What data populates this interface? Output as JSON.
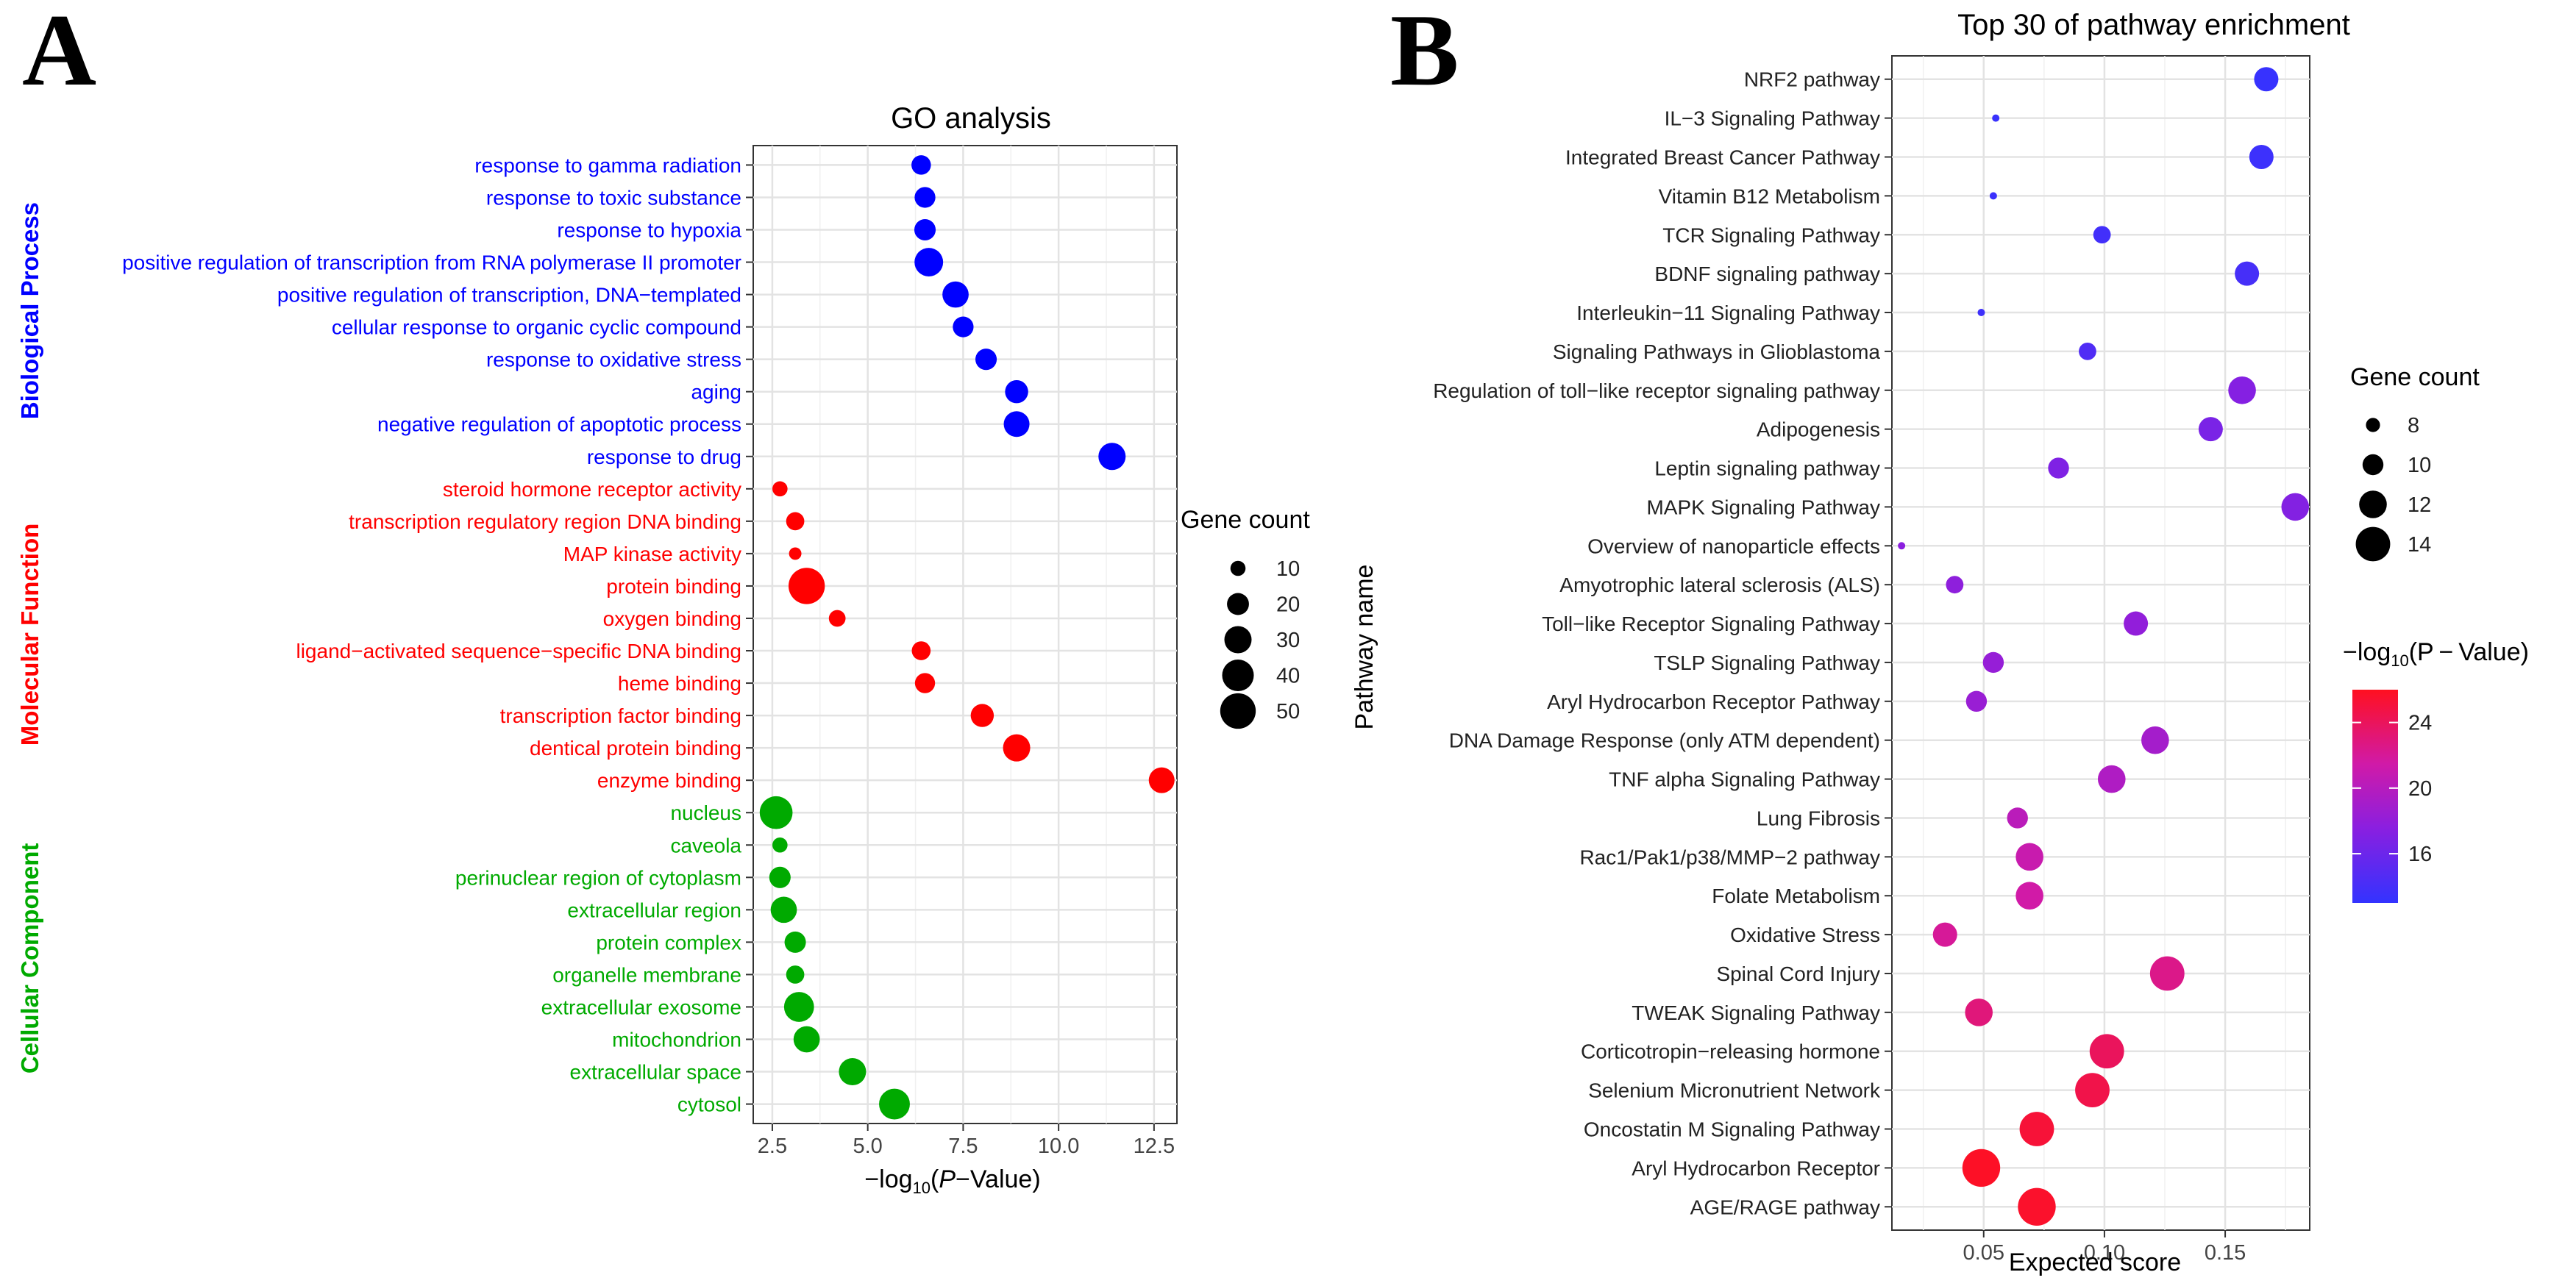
{
  "chart_data": [
    {
      "type": "scatter",
      "panel_label": "A",
      "title": "GO analysis",
      "xlabel_prefix": "−log",
      "xlabel_sub": "10",
      "xlabel_paren_open": "(",
      "xlabel_italic": "P",
      "xlabel_suffix": "−Value)",
      "xlim": [
        2.0,
        13.1
      ],
      "xticks": [
        2.5,
        5.0,
        7.5,
        10.0,
        12.5
      ],
      "xtick_labels": [
        "2.5",
        "5.0",
        "7.5",
        "10.0",
        "12.5"
      ],
      "grid": true,
      "groups": [
        {
          "name": "Biological Process",
          "color": "#0000FF"
        },
        {
          "name": "Molecular Function",
          "color": "#FF0000"
        },
        {
          "name": "Cellular Component",
          "color": "#00AA00"
        }
      ],
      "size_legend": {
        "title": "Gene count",
        "values": [
          10,
          20,
          30,
          40,
          50
        ],
        "labels": [
          "10",
          "20",
          "30",
          "40",
          "50"
        ]
      },
      "points": [
        {
          "term": "response to gamma radiation",
          "x": 6.4,
          "count": 16,
          "group": 0
        },
        {
          "term": "response to toxic substance",
          "x": 6.5,
          "count": 18,
          "group": 0
        },
        {
          "term": "response to hypoxia",
          "x": 6.5,
          "count": 19,
          "group": 0
        },
        {
          "term": "positive regulation of transcription from RNA polymerase II promoter",
          "x": 6.6,
          "count": 33,
          "group": 0
        },
        {
          "term": "positive regulation of transcription, DNA−templated",
          "x": 7.3,
          "count": 28,
          "group": 0
        },
        {
          "term": "cellular response to organic cyclic compound",
          "x": 7.5,
          "count": 18,
          "group": 0
        },
        {
          "term": "response to oxidative stress",
          "x": 8.1,
          "count": 19,
          "group": 0
        },
        {
          "term": "aging",
          "x": 8.9,
          "count": 22,
          "group": 0
        },
        {
          "term": "negative regulation of apoptotic process",
          "x": 8.9,
          "count": 27,
          "group": 0
        },
        {
          "term": "response to drug",
          "x": 11.4,
          "count": 30,
          "group": 0
        },
        {
          "term": "steroid hormone receptor activity",
          "x": 2.7,
          "count": 10,
          "group": 1
        },
        {
          "term": "transcription regulatory region DNA binding",
          "x": 3.1,
          "count": 14,
          "group": 1
        },
        {
          "term": "MAP kinase activity",
          "x": 3.1,
          "count": 7,
          "group": 1
        },
        {
          "term": "protein binding",
          "x": 3.4,
          "count": 52,
          "group": 1
        },
        {
          "term": "oxygen binding",
          "x": 4.2,
          "count": 12,
          "group": 1
        },
        {
          "term": "ligand−activated sequence−specific DNA binding",
          "x": 6.4,
          "count": 15,
          "group": 1
        },
        {
          "term": "heme binding",
          "x": 6.5,
          "count": 17,
          "group": 1
        },
        {
          "term": "transcription factor binding",
          "x": 8.0,
          "count": 22,
          "group": 1
        },
        {
          "term": "dentical protein binding",
          "x": 8.9,
          "count": 30,
          "group": 1
        },
        {
          "term": "enzyme binding",
          "x": 12.7,
          "count": 27,
          "group": 1
        },
        {
          "term": "nucleus",
          "x": 2.6,
          "count": 43,
          "group": 2
        },
        {
          "term": "caveola",
          "x": 2.7,
          "count": 10,
          "group": 2
        },
        {
          "term": "perinuclear region of cytoplasm",
          "x": 2.7,
          "count": 19,
          "group": 2
        },
        {
          "term": "extracellular region",
          "x": 2.8,
          "count": 28,
          "group": 2
        },
        {
          "term": "protein complex",
          "x": 3.1,
          "count": 19,
          "group": 2
        },
        {
          "term": "organelle membrane",
          "x": 3.1,
          "count": 14,
          "group": 2
        },
        {
          "term": "extracellular exosome",
          "x": 3.2,
          "count": 36,
          "group": 2
        },
        {
          "term": "mitochondrion",
          "x": 3.4,
          "count": 28,
          "group": 2
        },
        {
          "term": "extracellular space",
          "x": 4.6,
          "count": 30,
          "group": 2
        },
        {
          "term": "cytosol",
          "x": 5.7,
          "count": 38,
          "group": 2
        }
      ]
    },
    {
      "type": "scatter",
      "panel_label": "B",
      "title": "Top 30 of pathway enrichment",
      "xlabel": "Expected score",
      "ylabel": "Pathway name",
      "xlim": [
        0.012,
        0.185
      ],
      "xticks": [
        0.05,
        0.1,
        0.15
      ],
      "xtick_labels": [
        "0.05",
        "0.10",
        "0.15"
      ],
      "grid": true,
      "size_legend": {
        "title": "Gene count",
        "values": [
          8,
          10,
          12,
          14
        ],
        "labels": [
          "8",
          "10",
          "12",
          "14"
        ]
      },
      "color_legend": {
        "title_prefix": "−log",
        "title_sub": "10",
        "title_suffix": "(P − Value)",
        "min": 13,
        "max": 26,
        "ticks": [
          16,
          20,
          24
        ],
        "tick_labels": [
          "16",
          "20",
          "24"
        ],
        "low_color": "#3333FF",
        "high_color": "#FF1020"
      },
      "points": [
        {
          "pathway": "NRF2 pathway",
          "x": 0.167,
          "count": 11,
          "logp": 13.2
        },
        {
          "pathway": "IL−3 Signaling Pathway",
          "x": 0.055,
          "count": 6,
          "logp": 13.3
        },
        {
          "pathway": "Integrated Breast Cancer Pathway",
          "x": 0.165,
          "count": 11,
          "logp": 13.5
        },
        {
          "pathway": "Vitamin B12 Metabolism",
          "x": 0.054,
          "count": 6,
          "logp": 13.4
        },
        {
          "pathway": "TCR Signaling Pathway",
          "x": 0.099,
          "count": 9,
          "logp": 13.8
        },
        {
          "pathway": "BDNF signaling pathway",
          "x": 0.159,
          "count": 11,
          "logp": 14.0
        },
        {
          "pathway": "Interleukin−11 Signaling Pathway",
          "x": 0.049,
          "count": 6,
          "logp": 13.6
        },
        {
          "pathway": "Signaling Pathways in Glioblastoma",
          "x": 0.093,
          "count": 9,
          "logp": 14.5
        },
        {
          "pathway": "Regulation of toll−like receptor signaling pathway",
          "x": 0.157,
          "count": 12,
          "logp": 17.3
        },
        {
          "pathway": "Adipogenesis",
          "x": 0.144,
          "count": 11,
          "logp": 16.7
        },
        {
          "pathway": "Leptin signaling pathway",
          "x": 0.081,
          "count": 10,
          "logp": 17.0
        },
        {
          "pathway": "MAPK Signaling Pathway",
          "x": 0.179,
          "count": 12,
          "logp": 17.2
        },
        {
          "pathway": "Overview of nanoparticle effects",
          "x": 0.016,
          "count": 6,
          "logp": 17.6
        },
        {
          "pathway": "Amyotrophic lateral sclerosis (ALS)",
          "x": 0.038,
          "count": 9,
          "logp": 17.8
        },
        {
          "pathway": "Toll−like Receptor Signaling Pathway",
          "x": 0.113,
          "count": 11,
          "logp": 18.0
        },
        {
          "pathway": "TSLP Signaling Pathway",
          "x": 0.054,
          "count": 10,
          "logp": 18.2
        },
        {
          "pathway": "Aryl Hydrocarbon Receptor Pathway",
          "x": 0.047,
          "count": 10,
          "logp": 18.4
        },
        {
          "pathway": "DNA Damage Response (only ATM dependent)",
          "x": 0.121,
          "count": 12,
          "logp": 19.0
        },
        {
          "pathway": "TNF alpha Signaling Pathway",
          "x": 0.103,
          "count": 12,
          "logp": 19.6
        },
        {
          "pathway": "Lung Fibrosis",
          "x": 0.064,
          "count": 10,
          "logp": 20.2
        },
        {
          "pathway": "Rac1/Pak1/p38/MMP−2 pathway",
          "x": 0.069,
          "count": 12,
          "logp": 21.0
        },
        {
          "pathway": "Folate Metabolism",
          "x": 0.069,
          "count": 12,
          "logp": 21.5
        },
        {
          "pathway": "Oxidative Stress",
          "x": 0.034,
          "count": 11,
          "logp": 22.0
        },
        {
          "pathway": "Spinal Cord Injury",
          "x": 0.126,
          "count": 14,
          "logp": 22.5
        },
        {
          "pathway": "TWEAK Signaling Pathway",
          "x": 0.048,
          "count": 12,
          "logp": 23.0
        },
        {
          "pathway": "Corticotropin−releasing hormone",
          "x": 0.101,
          "count": 14,
          "logp": 24.0
        },
        {
          "pathway": "Selenium Micronutrient Network",
          "x": 0.095,
          "count": 14,
          "logp": 24.6
        },
        {
          "pathway": "Oncostatin M Signaling Pathway",
          "x": 0.072,
          "count": 14,
          "logp": 25.2
        },
        {
          "pathway": "Aryl Hydrocarbon Receptor",
          "x": 0.049,
          "count": 15,
          "logp": 25.8
        },
        {
          "pathway": "AGE/RAGE pathway",
          "x": 0.072,
          "count": 15,
          "logp": 25.6
        }
      ]
    }
  ]
}
